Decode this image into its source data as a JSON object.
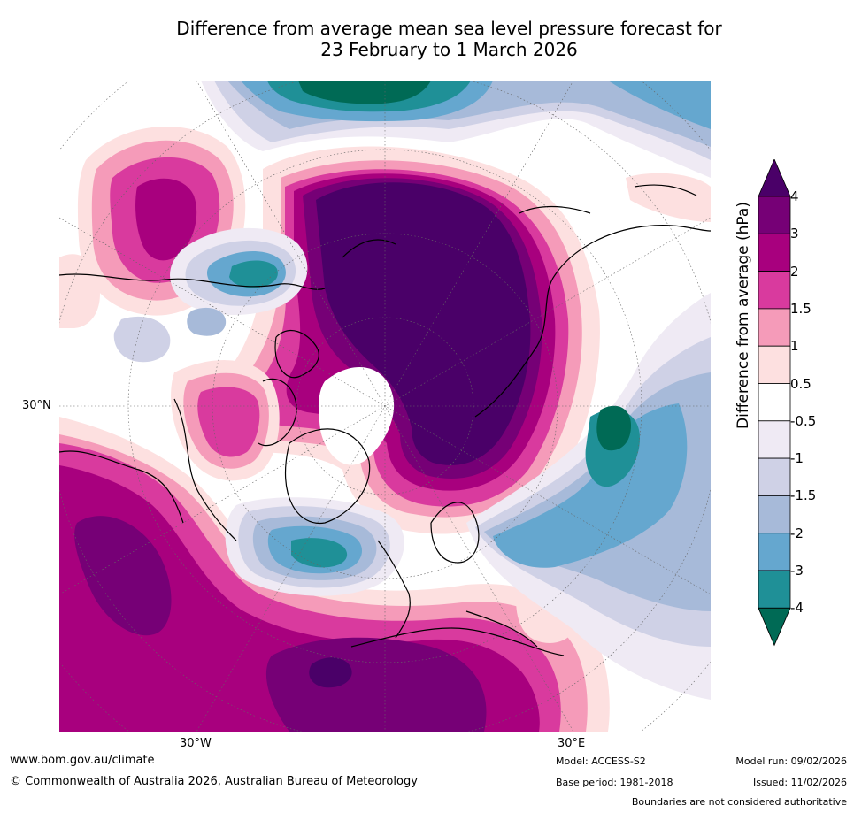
{
  "title_line1": "Difference from average mean sea level pressure forecast for",
  "title_line2": "23 February to 1 March 2026",
  "map": {
    "projection": "polar stereographic (northern hemisphere)",
    "lat_label": "30°N",
    "lon_labels": [
      "30°W",
      "30°E"
    ]
  },
  "colorbar": {
    "label": "Difference from average (hPa)",
    "ticks": [
      "4",
      "3",
      "2",
      "1.5",
      "1",
      "0.5",
      "-0.5",
      "-1",
      "-1.5",
      "-2",
      "-3",
      "-4"
    ],
    "colors": [
      "#4a0068",
      "#760076",
      "#a8007e",
      "#d93a9e",
      "#f59bb9",
      "#fde0e0",
      "#ffffff",
      "#efeaf4",
      "#cfd1e6",
      "#a7bad9",
      "#65a7cf",
      "#1f9097",
      "#006a55"
    ]
  },
  "footer": {
    "url": "www.bom.gov.au/climate",
    "copyright": "© Commonwealth of Australia 2026, Australian Bureau of Meteorology",
    "model": "Model: ACCESS-S2",
    "base_period": "Base period: 1981-2018",
    "model_run": "Model run: 09/02/2026",
    "issued": "Issued: 11/02/2026",
    "disclaimer": "Boundaries are not considered authoritative"
  }
}
